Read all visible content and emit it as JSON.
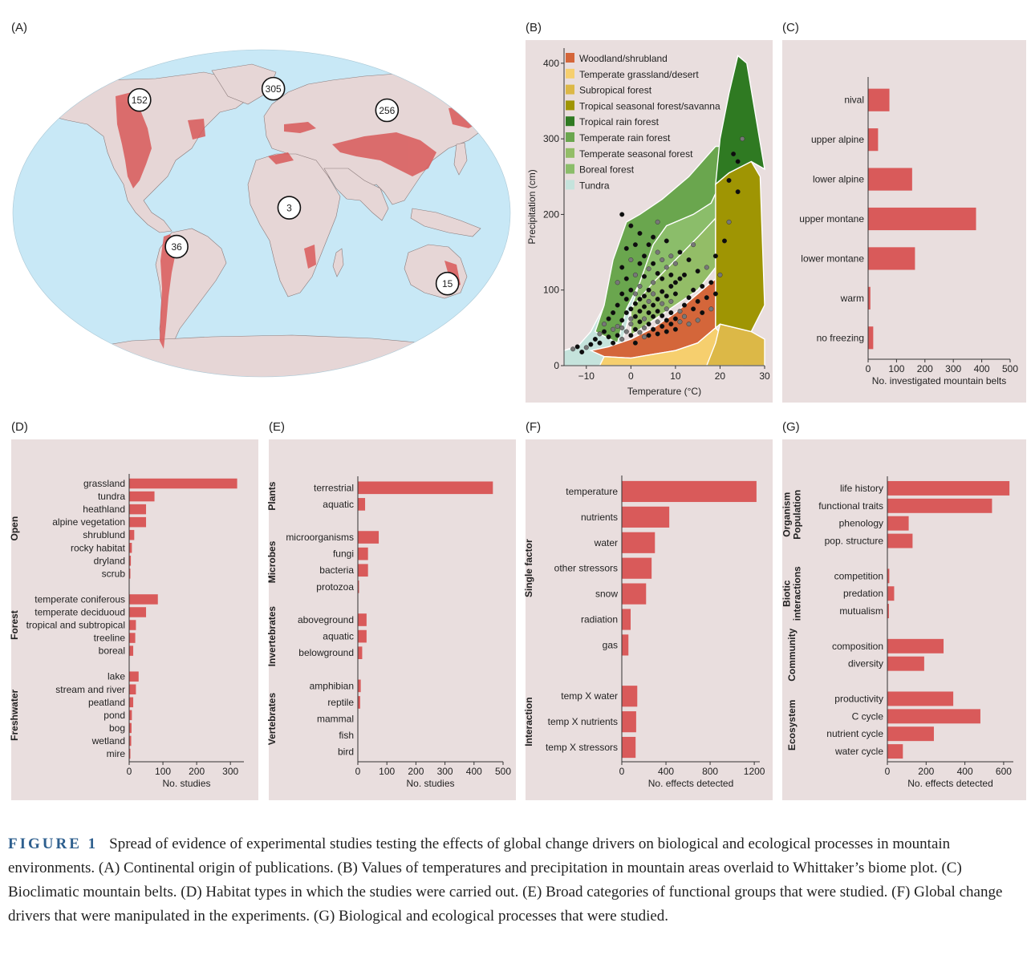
{
  "panels": {
    "a": {
      "label": "(A)",
      "map_counts": [
        {
          "name": "north-america",
          "value": "152",
          "lon": -100,
          "lat": 45
        },
        {
          "name": "europe",
          "value": "305",
          "lon": 10,
          "lat": 51
        },
        {
          "name": "asia",
          "value": "256",
          "lon": 100,
          "lat": 40
        },
        {
          "name": "africa",
          "value": "3",
          "lon": 20,
          "lat": 2
        },
        {
          "name": "south-america",
          "value": "36",
          "lon": -62,
          "lat": -12
        },
        {
          "name": "australia",
          "value": "15",
          "lon": 140,
          "lat": -26
        }
      ],
      "colors": {
        "ocean": "#c8e8f6",
        "land": "#e6d6d6",
        "mountains": "#d95a5a"
      }
    },
    "b": {
      "label": "(B)"
    },
    "c": {
      "label": "(C)"
    },
    "d": {
      "label": "(D)"
    },
    "e": {
      "label": "(E)"
    },
    "f": {
      "label": "(F)"
    },
    "g": {
      "label": "(G)"
    }
  },
  "chart_data": [
    {
      "id": "B",
      "type": "scatter",
      "xlabel": "Temperature (°C)",
      "ylabel": "Precipitation (cm)",
      "xlim": [
        -15,
        30
      ],
      "ylim": [
        0,
        420
      ],
      "xticks": [
        "−10",
        "0",
        "10",
        "20",
        "30"
      ],
      "xtick_values": [
        -10,
        0,
        10,
        20,
        30
      ],
      "yticks": [
        "0",
        "100",
        "200",
        "300",
        "400"
      ],
      "ytick_values": [
        0,
        100,
        200,
        300,
        400
      ],
      "legend": [
        {
          "name": "Woodland/shrubland",
          "color": "#d4663a"
        },
        {
          "name": "Temperate grassland/desert",
          "color": "#f6cf6e"
        },
        {
          "name": "Subropical forest",
          "color": "#dcb847"
        },
        {
          "name": "Tropical seasonal forest/savanna",
          "color": "#9f9503"
        },
        {
          "name": "Tropical rain forest",
          "color": "#2f7a22"
        },
        {
          "name": "Temperate rain forest",
          "color": "#6aa64e"
        },
        {
          "name": "Temperate seasonal forest",
          "color": "#93bd67"
        },
        {
          "name": "Boreal forest",
          "color": "#8bbd6a"
        },
        {
          "name": "Tundra",
          "color": "#c5e3dc"
        }
      ],
      "legend_position": "top-left",
      "points_description_note": "",
      "points": [
        [
          -13,
          22
        ],
        [
          -12,
          25
        ],
        [
          -11,
          18
        ],
        [
          -10,
          24
        ],
        [
          -9,
          28
        ],
        [
          -8,
          35
        ],
        [
          -7,
          42
        ],
        [
          -7,
          30
        ],
        [
          -6,
          45
        ],
        [
          -6,
          55
        ],
        [
          -5,
          38
        ],
        [
          -5,
          62
        ],
        [
          -4,
          48
        ],
        [
          -4,
          70
        ],
        [
          -4,
          30
        ],
        [
          -3,
          52
        ],
        [
          -3,
          80
        ],
        [
          -3,
          40
        ],
        [
          -3,
          110
        ],
        [
          -2,
          60
        ],
        [
          -2,
          95
        ],
        [
          -2,
          35
        ],
        [
          -2,
          130
        ],
        [
          -2,
          200
        ],
        [
          -2,
          50
        ],
        [
          -1,
          70
        ],
        [
          -1,
          88
        ],
        [
          -1,
          45
        ],
        [
          -1,
          115
        ],
        [
          -1,
          155
        ],
        [
          0,
          55
        ],
        [
          0,
          75
        ],
        [
          0,
          100
        ],
        [
          0,
          140
        ],
        [
          0,
          40
        ],
        [
          0,
          185
        ],
        [
          0,
          62
        ],
        [
          1,
          48
        ],
        [
          1,
          82
        ],
        [
          1,
          120
        ],
        [
          1,
          65
        ],
        [
          1,
          160
        ],
        [
          1,
          95
        ],
        [
          1,
          30
        ],
        [
          2,
          58
        ],
        [
          2,
          105
        ],
        [
          2,
          72
        ],
        [
          2,
          135
        ],
        [
          2,
          44
        ],
        [
          2,
          175
        ],
        [
          2,
          88
        ],
        [
          3,
          62
        ],
        [
          3,
          92
        ],
        [
          3,
          118
        ],
        [
          3,
          50
        ],
        [
          3,
          145
        ],
        [
          3,
          78
        ],
        [
          3,
          38
        ],
        [
          4,
          70
        ],
        [
          4,
          100
        ],
        [
          4,
          128
        ],
        [
          4,
          55
        ],
        [
          4,
          160
        ],
        [
          4,
          85
        ],
        [
          4,
          40
        ],
        [
          5,
          65
        ],
        [
          5,
          95
        ],
        [
          5,
          135
        ],
        [
          5,
          48
        ],
        [
          5,
          110
        ],
        [
          5,
          170
        ],
        [
          5,
          80
        ],
        [
          6,
          58
        ],
        [
          6,
          88
        ],
        [
          6,
          122
        ],
        [
          6,
          150
        ],
        [
          6,
          72
        ],
        [
          6,
          42
        ],
        [
          6,
          190
        ],
        [
          7,
          66
        ],
        [
          7,
          98
        ],
        [
          7,
          140
        ],
        [
          7,
          52
        ],
        [
          7,
          115
        ],
        [
          7,
          82
        ],
        [
          8,
          60
        ],
        [
          8,
          92
        ],
        [
          8,
          130
        ],
        [
          8,
          45
        ],
        [
          8,
          165
        ],
        [
          8,
          75
        ],
        [
          9,
          70
        ],
        [
          9,
          105
        ],
        [
          9,
          145
        ],
        [
          9,
          55
        ],
        [
          9,
          120
        ],
        [
          9,
          85
        ],
        [
          10,
          62
        ],
        [
          10,
          95
        ],
        [
          10,
          135
        ],
        [
          10,
          48
        ],
        [
          10,
          110
        ],
        [
          11,
          72
        ],
        [
          11,
          115
        ],
        [
          11,
          150
        ],
        [
          11,
          58
        ],
        [
          12,
          80
        ],
        [
          12,
          120
        ],
        [
          12,
          65
        ],
        [
          13,
          90
        ],
        [
          13,
          140
        ],
        [
          13,
          55
        ],
        [
          14,
          100
        ],
        [
          14,
          75
        ],
        [
          14,
          160
        ],
        [
          15,
          85
        ],
        [
          15,
          125
        ],
        [
          15,
          60
        ],
        [
          16,
          105
        ],
        [
          16,
          70
        ],
        [
          17,
          130
        ],
        [
          17,
          90
        ],
        [
          18,
          110
        ],
        [
          18,
          75
        ],
        [
          19,
          145
        ],
        [
          19,
          95
        ],
        [
          20,
          120
        ],
        [
          21,
          165
        ],
        [
          22,
          245
        ],
        [
          22,
          190
        ],
        [
          23,
          280
        ],
        [
          24,
          270
        ],
        [
          25,
          300
        ],
        [
          24,
          230
        ]
      ],
      "regions_note": ""
    },
    {
      "id": "C",
      "type": "bar",
      "orientation": "horizontal",
      "categories": [
        "nival",
        "upper alpine",
        "lower alpine",
        "upper montane",
        "lower montane",
        "warm",
        "no freezing"
      ],
      "values": [
        75,
        35,
        155,
        380,
        165,
        8,
        18
      ],
      "xlabel": "No. investigated mountain belts",
      "xlim": [
        0,
        500
      ],
      "xticks": [
        0,
        100,
        200,
        300,
        400,
        500
      ],
      "bar_color": "#d95a5a"
    },
    {
      "id": "D",
      "type": "bar",
      "orientation": "horizontal",
      "groups": [
        {
          "name": "Open",
          "categories": [
            "grassland",
            "tundra",
            "heathland",
            "alpine vegetation",
            "shrublund",
            "rocky habitat",
            "dryland",
            "scrub"
          ],
          "values": [
            320,
            75,
            50,
            50,
            15,
            8,
            5,
            3
          ]
        },
        {
          "name": "Forest",
          "categories": [
            "temperate coniferous",
            "temperate deciduoud",
            "tropical and subtropical",
            "treeline",
            "boreal"
          ],
          "values": [
            85,
            50,
            20,
            18,
            12
          ]
        },
        {
          "name": "Freshwater",
          "categories": [
            "lake",
            "stream and river",
            "peatland",
            "pond",
            "bog",
            "wetland",
            "mire"
          ],
          "values": [
            28,
            20,
            12,
            8,
            7,
            6,
            3
          ]
        }
      ],
      "xlabel": "No. studies",
      "xlim": [
        0,
        340
      ],
      "xticks": [
        0,
        100,
        200,
        300
      ],
      "bar_color": "#d95a5a"
    },
    {
      "id": "E",
      "type": "bar",
      "orientation": "horizontal",
      "groups": [
        {
          "name": "Plants",
          "categories": [
            "terrestrial",
            "aquatic"
          ],
          "values": [
            465,
            25
          ]
        },
        {
          "name": "Microbes",
          "categories": [
            "microorganisms",
            "fungi",
            "bacteria",
            "protozoa"
          ],
          "values": [
            72,
            35,
            35,
            3
          ]
        },
        {
          "name": "Invertebrates",
          "categories": [
            "aboveground",
            "aquatic",
            "belowground"
          ],
          "values": [
            30,
            30,
            15
          ]
        },
        {
          "name": "Vertebrates",
          "categories": [
            "amphibian",
            "reptile",
            "mammal",
            "fish",
            "bird"
          ],
          "values": [
            10,
            8,
            0,
            0,
            0
          ]
        }
      ],
      "xlabel": "No. studies",
      "xlim": [
        0,
        500
      ],
      "xticks": [
        0,
        100,
        200,
        300,
        400,
        500
      ],
      "bar_color": "#d95a5a"
    },
    {
      "id": "F",
      "type": "bar",
      "orientation": "horizontal",
      "groups": [
        {
          "name": "Single factor",
          "categories": [
            "temperature",
            "nutrients",
            "water",
            "other stressors",
            "snow",
            "radiation",
            "gas"
          ],
          "values": [
            1220,
            430,
            300,
            270,
            220,
            80,
            60
          ]
        },
        {
          "name": "Interaction",
          "categories": [
            "temp X water",
            "temp X nutrients",
            "temp X stressors"
          ],
          "values": [
            140,
            130,
            125
          ]
        }
      ],
      "xlabel": "No. effects detected",
      "xlim": [
        0,
        1250
      ],
      "xticks": [
        0,
        400,
        800,
        1200
      ],
      "bar_color": "#d95a5a"
    },
    {
      "id": "G",
      "type": "bar",
      "orientation": "horizontal",
      "groups": [
        {
          "name": "Organism\nPopulation",
          "categories": [
            "life history",
            "functional traits",
            "phenology",
            "pop. structure"
          ],
          "values": [
            630,
            540,
            110,
            130
          ]
        },
        {
          "name": "Biotic\ninteractions",
          "categories": [
            "competition",
            "predation",
            "mutualism"
          ],
          "values": [
            10,
            35,
            8
          ]
        },
        {
          "name": "Community",
          "categories": [
            "composition",
            "diversity"
          ],
          "values": [
            290,
            190
          ]
        },
        {
          "name": "Ecosystem",
          "categories": [
            "productivity",
            "C cycle",
            "nutrient cycle",
            "water cycle"
          ],
          "values": [
            340,
            480,
            240,
            80
          ]
        }
      ],
      "xlabel": "No. effects detected",
      "xlim": [
        0,
        650
      ],
      "xticks": [
        0,
        200,
        400,
        600
      ],
      "bar_color": "#d95a5a"
    }
  ],
  "caption": {
    "figure": "FIGURE 1",
    "text": "Spread of evidence of experimental studies testing the effects of global change drivers on biological and ecological processes in mountain environments. (A) Continental origin of publications. (B) Values of temperatures and precipitation in mountain areas overlaid to Whittaker’s biome plot. (C) Bioclimatic mountain belts. (D) Habitat types in which the studies were carried out. (E) Broad categories of functional groups that were studied. (F) Global change drivers that were manipulated in the experiments. (G) Biological and ecological processes that were studied."
  }
}
